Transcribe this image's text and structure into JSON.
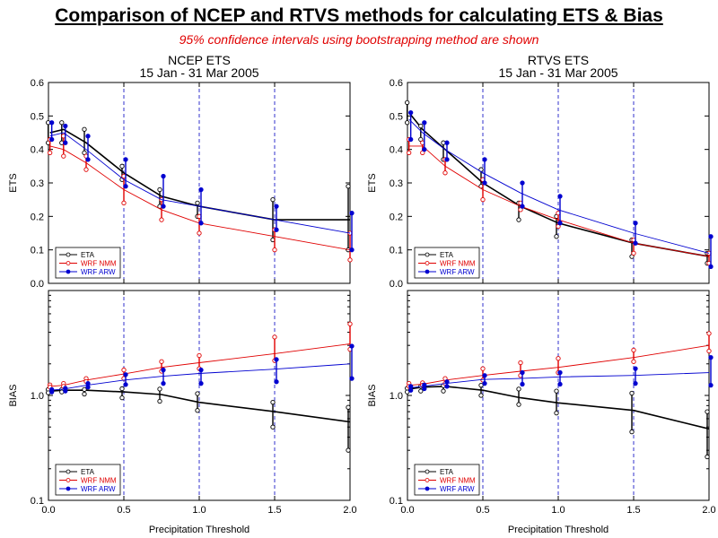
{
  "title": "Comparison of NCEP and RTVS methods for calculating ETS & Bias",
  "subtitle": "95% confidence intervals using bootstrapping method are shown",
  "colors": {
    "ETA": "#000000",
    "WRF NMM": "#e00000",
    "WRF ARW": "#0000d0",
    "gridline": "#0000c0"
  },
  "chart_data": [
    {
      "type": "line",
      "title": "NCEP ETS",
      "subtitle": "15 Jan - 31 Mar 2005",
      "ylabel": "ETS",
      "xlabel": "",
      "xlim": [
        0,
        2
      ],
      "ylim": [
        0,
        0.6
      ],
      "xticks": [
        0,
        0.5,
        1.0,
        1.5,
        2.0
      ],
      "xtick_labels": [
        "0.0",
        "0.5",
        "1.0",
        "1.5",
        "2.0"
      ],
      "yticks": [
        0,
        0.1,
        0.2,
        0.3,
        0.4,
        0.5,
        0.6
      ],
      "ytick_labels": [
        "0.0",
        "0.1",
        "0.2",
        "0.3",
        "0.4",
        "0.5",
        "0.6"
      ],
      "legend": "bottom-left",
      "x": [
        0.01,
        0.1,
        0.25,
        0.5,
        0.75,
        1.0,
        1.5,
        2.0
      ],
      "series": [
        {
          "name": "ETA",
          "curve": [
            0.45,
            0.46,
            0.42,
            0.33,
            0.26,
            0.23,
            0.19,
            0.19
          ],
          "ci_high": [
            0.48,
            0.48,
            0.46,
            0.35,
            0.28,
            0.24,
            0.25,
            0.29
          ],
          "ci_low": [
            0.42,
            0.42,
            0.39,
            0.31,
            0.23,
            0.2,
            0.13,
            0.1
          ]
        },
        {
          "name": "WRF NMM",
          "curve": [
            0.41,
            0.4,
            0.36,
            0.28,
            0.22,
            0.18,
            0.14,
            0.1
          ],
          "ci_high": [
            0.43,
            0.44,
            0.38,
            0.32,
            0.25,
            0.2,
            0.16,
            0.15
          ],
          "ci_low": [
            0.39,
            0.38,
            0.34,
            0.24,
            0.19,
            0.15,
            0.1,
            0.07
          ]
        },
        {
          "name": "WRF ARW",
          "curve": [
            0.44,
            0.45,
            0.4,
            0.31,
            0.25,
            0.23,
            0.19,
            0.15
          ],
          "ci_high": [
            0.48,
            0.47,
            0.44,
            0.37,
            0.32,
            0.28,
            0.23,
            0.21
          ],
          "ci_low": [
            0.43,
            0.42,
            0.37,
            0.29,
            0.23,
            0.18,
            0.16,
            0.1
          ]
        }
      ]
    },
    {
      "type": "line",
      "title": "RTVS ETS",
      "subtitle": "15 Jan - 31 Mar 2005",
      "ylabel": "ETS",
      "xlabel": "",
      "xlim": [
        0,
        2
      ],
      "ylim": [
        0,
        0.6
      ],
      "xticks": [
        0,
        0.5,
        1.0,
        1.5,
        2.0
      ],
      "xtick_labels": [
        "0.0",
        "0.5",
        "1.0",
        "1.5",
        "2.0"
      ],
      "yticks": [
        0,
        0.1,
        0.2,
        0.3,
        0.4,
        0.5,
        0.6
      ],
      "ytick_labels": [
        "0.0",
        "0.1",
        "0.2",
        "0.3",
        "0.4",
        "0.5",
        "0.6"
      ],
      "legend": "bottom-left",
      "x": [
        0.01,
        0.1,
        0.25,
        0.5,
        0.75,
        1.0,
        1.5,
        2.0
      ],
      "series": [
        {
          "name": "ETA",
          "curve": [
            0.51,
            0.46,
            0.4,
            0.3,
            0.23,
            0.18,
            0.12,
            0.08
          ],
          "ci_high": [
            0.54,
            0.47,
            0.42,
            0.34,
            0.24,
            0.2,
            0.13,
            0.09
          ],
          "ci_low": [
            0.48,
            0.43,
            0.37,
            0.29,
            0.19,
            0.14,
            0.08,
            0.06
          ]
        },
        {
          "name": "WRF NMM",
          "curve": [
            0.41,
            0.41,
            0.35,
            0.28,
            0.23,
            0.19,
            0.12,
            0.08
          ],
          "ci_high": [
            0.43,
            0.42,
            0.37,
            0.31,
            0.24,
            0.21,
            0.13,
            0.09
          ],
          "ci_low": [
            0.39,
            0.39,
            0.33,
            0.25,
            0.22,
            0.17,
            0.09,
            0.06
          ]
        },
        {
          "name": "WRF ARW",
          "curve": [
            0.49,
            0.45,
            0.4,
            0.33,
            0.27,
            0.22,
            0.15,
            0.09
          ],
          "ci_high": [
            0.51,
            0.48,
            0.42,
            0.37,
            0.3,
            0.26,
            0.18,
            0.14
          ],
          "ci_low": [
            0.43,
            0.4,
            0.37,
            0.3,
            0.23,
            0.18,
            0.12,
            0.05
          ]
        }
      ]
    },
    {
      "type": "line",
      "title": "",
      "ylabel": "BIAS",
      "xlabel": "Precipitation Threshold",
      "xlim": [
        0,
        2
      ],
      "ylim": [
        0.1,
        10
      ],
      "y_scale": "log",
      "xticks": [
        0,
        0.5,
        1.0,
        1.5,
        2.0
      ],
      "xtick_labels": [
        "0.0",
        "0.5",
        "1.0",
        "1.5",
        "2.0"
      ],
      "yticks": [
        0.1,
        1.0
      ],
      "ytick_labels": [
        "0.1",
        "1.0"
      ],
      "legend": "bottom-left",
      "x": [
        0.01,
        0.1,
        0.25,
        0.5,
        0.75,
        1.0,
        1.5,
        2.0
      ],
      "series": [
        {
          "name": "ETA",
          "curve": [
            1.1,
            1.12,
            1.12,
            1.08,
            1.02,
            0.86,
            0.7,
            0.56
          ],
          "ci_high": [
            1.14,
            1.14,
            1.14,
            1.16,
            1.15,
            1.04,
            0.86,
            0.77
          ],
          "ci_low": [
            1.06,
            1.08,
            1.03,
            0.95,
            0.88,
            0.72,
            0.5,
            0.3
          ]
        },
        {
          "name": "WRF NMM",
          "curve": [
            1.22,
            1.25,
            1.4,
            1.6,
            1.85,
            2.05,
            2.5,
            3.1
          ],
          "ci_high": [
            1.26,
            1.3,
            1.45,
            1.75,
            2.1,
            2.4,
            3.6,
            4.8
          ],
          "ci_low": [
            1.2,
            1.22,
            1.36,
            1.45,
            1.7,
            1.8,
            2.15,
            2.75
          ]
        },
        {
          "name": "WRF ARW",
          "curve": [
            1.12,
            1.15,
            1.25,
            1.4,
            1.52,
            1.62,
            1.78,
            2.0
          ],
          "ci_high": [
            1.14,
            1.17,
            1.3,
            1.58,
            1.75,
            1.75,
            2.2,
            2.95
          ],
          "ci_low": [
            1.08,
            1.1,
            1.2,
            1.27,
            1.3,
            1.3,
            1.35,
            1.45
          ]
        }
      ]
    },
    {
      "type": "line",
      "title": "",
      "ylabel": "BIAS",
      "xlabel": "Precipitation Threshold",
      "xlim": [
        0,
        2
      ],
      "ylim": [
        0.1,
        10
      ],
      "y_scale": "log",
      "xticks": [
        0,
        0.5,
        1.0,
        1.5,
        2.0
      ],
      "xtick_labels": [
        "0.0",
        "0.5",
        "1.0",
        "1.5",
        "2.0"
      ],
      "yticks": [
        0.1,
        1.0
      ],
      "ytick_labels": [
        "0.1",
        "1.0"
      ],
      "legend": "bottom-left",
      "x": [
        0.01,
        0.1,
        0.25,
        0.5,
        0.75,
        1.0,
        1.5,
        2.0
      ],
      "series": [
        {
          "name": "ETA",
          "curve": [
            1.15,
            1.2,
            1.22,
            1.12,
            0.95,
            0.85,
            0.72,
            0.48
          ],
          "ci_high": [
            1.17,
            1.22,
            1.24,
            1.25,
            1.15,
            1.1,
            1.05,
            0.7
          ],
          "ci_low": [
            1.08,
            1.1,
            1.1,
            1.0,
            0.82,
            0.68,
            0.45,
            0.26
          ]
        },
        {
          "name": "WRF NMM",
          "curve": [
            1.25,
            1.28,
            1.4,
            1.55,
            1.7,
            1.85,
            2.3,
            3.0
          ],
          "ci_high": [
            1.3,
            1.32,
            1.45,
            1.8,
            2.05,
            2.25,
            2.7,
            3.9
          ],
          "ci_low": [
            1.22,
            1.25,
            1.3,
            1.4,
            1.55,
            1.65,
            2.1,
            2.65
          ]
        },
        {
          "name": "WRF ARW",
          "curve": [
            1.18,
            1.22,
            1.3,
            1.42,
            1.45,
            1.5,
            1.55,
            1.65
          ],
          "ci_high": [
            1.22,
            1.26,
            1.35,
            1.55,
            1.65,
            1.65,
            1.8,
            2.3
          ],
          "ci_low": [
            1.12,
            1.16,
            1.22,
            1.3,
            1.28,
            1.28,
            1.3,
            1.25
          ]
        }
      ]
    }
  ]
}
